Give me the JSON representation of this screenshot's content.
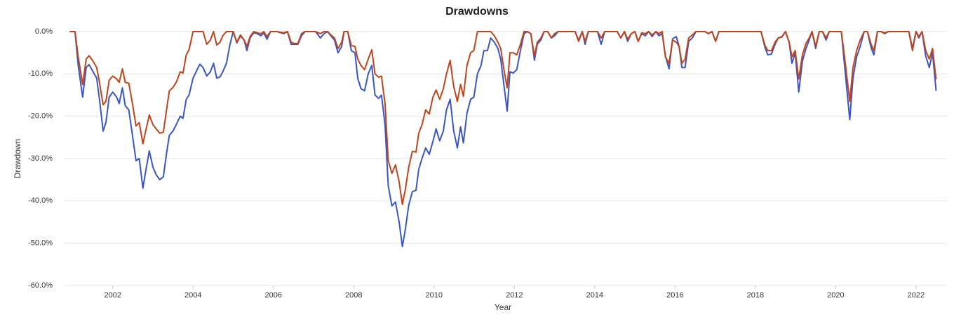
{
  "chart_data": {
    "type": "line",
    "title": "Drawdowns",
    "xlabel": "Year",
    "ylabel": "Drawdown",
    "x": [
      2000.93,
      2001.06,
      2001.14,
      2001.25,
      2001.34,
      2001.41,
      2001.51,
      2001.6,
      2001.67,
      2001.76,
      2001.83,
      2001.91,
      2002.0,
      2002.1,
      2002.16,
      2002.24,
      2002.31,
      2002.4,
      2002.49,
      2002.58,
      2002.66,
      2002.75,
      2002.82,
      2002.91,
      2003.0,
      2003.08,
      2003.17,
      2003.26,
      2003.34,
      2003.41,
      2003.5,
      2003.59,
      2003.68,
      2003.75,
      2003.83,
      2003.9,
      2004.0,
      2004.1,
      2004.17,
      2004.25,
      2004.34,
      2004.43,
      2004.51,
      2004.59,
      2004.67,
      2004.74,
      2004.83,
      2004.92,
      2005.0,
      2005.09,
      2005.18,
      2005.27,
      2005.34,
      2005.42,
      2005.51,
      2005.6,
      2005.69,
      2005.76,
      2005.84,
      2005.93,
      2006.09,
      2006.26,
      2006.35,
      2006.44,
      2006.52,
      2006.61,
      2006.7,
      2006.79,
      2007.05,
      2007.17,
      2007.26,
      2007.35,
      2007.43,
      2007.52,
      2007.61,
      2007.7,
      2007.76,
      2007.85,
      2007.94,
      2008.03,
      2008.1,
      2008.18,
      2008.27,
      2008.36,
      2008.45,
      2008.53,
      2008.62,
      2008.69,
      2008.78,
      2008.86,
      2008.95,
      2009.04,
      2009.13,
      2009.21,
      2009.28,
      2009.37,
      2009.46,
      2009.55,
      2009.62,
      2009.7,
      2009.79,
      2009.88,
      2009.97,
      2010.05,
      2010.14,
      2010.23,
      2010.31,
      2010.4,
      2010.49,
      2010.58,
      2010.66,
      2010.73,
      2010.82,
      2010.91,
      2010.99,
      2011.08,
      2011.17,
      2011.24,
      2011.33,
      2011.41,
      2011.5,
      2011.59,
      2011.66,
      2011.73,
      2011.82,
      2011.89,
      2011.97,
      2012.06,
      2012.15,
      2012.24,
      2012.32,
      2012.41,
      2012.5,
      2012.57,
      2012.66,
      2012.74,
      2012.83,
      2012.92,
      2013.0,
      2013.09,
      2013.51,
      2013.6,
      2013.69,
      2013.76,
      2013.84,
      2014.07,
      2014.16,
      2014.25,
      2014.56,
      2014.65,
      2014.74,
      2014.82,
      2014.91,
      2015.0,
      2015.08,
      2015.17,
      2015.26,
      2015.34,
      2015.43,
      2015.52,
      2015.6,
      2015.68,
      2015.76,
      2015.85,
      2015.94,
      2016.03,
      2016.1,
      2016.17,
      2016.25,
      2016.34,
      2016.43,
      2016.52,
      2016.74,
      2016.83,
      2016.92,
      2017.01,
      2017.09,
      2018.14,
      2018.24,
      2018.31,
      2018.4,
      2018.49,
      2018.57,
      2018.66,
      2018.75,
      2018.84,
      2018.91,
      2018.99,
      2019.08,
      2019.17,
      2019.26,
      2019.34,
      2019.41,
      2019.5,
      2019.59,
      2019.67,
      2019.76,
      2019.84,
      2020.14,
      2020.22,
      2020.35,
      2020.43,
      2020.52,
      2020.61,
      2020.71,
      2020.79,
      2020.88,
      2020.95,
      2021.04,
      2021.13,
      2021.22,
      2021.31,
      2021.82,
      2021.91,
      2022.0,
      2022.07,
      2022.15,
      2022.24,
      2022.33,
      2022.41,
      2022.5
    ],
    "series": [
      {
        "color": "#3a56c5",
        "values": [
          0,
          0,
          -8,
          -15.5,
          -8.5,
          -7.8,
          -9.5,
          -11,
          -16,
          -23.5,
          -21.5,
          -15.5,
          -14.3,
          -15.5,
          -17,
          -13.3,
          -17.5,
          -18.5,
          -24.5,
          -30.5,
          -30,
          -37,
          -33,
          -28.2,
          -32,
          -33.8,
          -35,
          -34.3,
          -28.8,
          -24.5,
          -23.5,
          -21.8,
          -20,
          -20.5,
          -16,
          -15,
          -11,
          -9,
          -7.7,
          -8.5,
          -10.5,
          -9.5,
          -7.5,
          -11,
          -10.7,
          -9.5,
          -7.5,
          -3,
          0,
          -2.7,
          -1,
          -2,
          -4.5,
          -1.5,
          -0.3,
          -0.5,
          -1,
          -0.3,
          -1.8,
          0,
          0,
          -0.5,
          0,
          -3,
          -3,
          -3,
          -1,
          0,
          0,
          -1.5,
          -0.5,
          0,
          -1,
          -2,
          -5,
          -3.5,
          0,
          0,
          -4.5,
          -5,
          -11,
          -13.5,
          -14,
          -10,
          -8,
          -15,
          -15.8,
          -15,
          -22,
          -36.5,
          -41.2,
          -40.3,
          -45,
          -50.8,
          -47,
          -41,
          -37.8,
          -37.5,
          -32.5,
          -30,
          -27.5,
          -29,
          -26,
          -23,
          -25.8,
          -23.5,
          -18.5,
          -16,
          -23.5,
          -27.5,
          -22.5,
          -26.3,
          -19.3,
          -16,
          -15.5,
          -10,
          -8,
          -4.5,
          -4.5,
          -1.5,
          -2.5,
          -4,
          -6.5,
          -12,
          -18.8,
          -9.5,
          -9.8,
          -9,
          -4.5,
          -0.5,
          0,
          -0.5,
          -6.8,
          -3,
          -2,
          0,
          0,
          -1.5,
          -1,
          0,
          0,
          -2,
          0,
          -3,
          0,
          0,
          -3,
          0,
          0,
          -1.5,
          0,
          -2.3,
          -0.5,
          0,
          -2.3,
          -0.5,
          -1,
          0,
          -1.2,
          0,
          -1,
          -0.5,
          -5.8,
          -8.8,
          -1.7,
          -1.2,
          -3.5,
          -8.5,
          -8.5,
          -2.3,
          -1.5,
          0,
          0,
          -0.5,
          0,
          -2.3,
          0,
          0,
          -3.8,
          -5.5,
          -5.3,
          -3,
          -1.5,
          -1.3,
          0,
          -2.5,
          -7.5,
          -5,
          -14.3,
          -7,
          -4,
          -2,
          0,
          -4,
          0,
          0,
          -2,
          0,
          0,
          -8,
          -20.8,
          -11,
          -6,
          -3.5,
          0,
          0,
          -3.8,
          -5.5,
          0,
          0,
          -0.5,
          0,
          0,
          -4,
          0,
          -1.5,
          0,
          -5.8,
          -8.5,
          -5,
          -14
        ]
      },
      {
        "color": "#c0441a",
        "values": [
          0,
          0,
          -6,
          -12.5,
          -6.5,
          -5.7,
          -7,
          -8.5,
          -12,
          -17.3,
          -16.5,
          -11.5,
          -10.5,
          -11.2,
          -12,
          -8.8,
          -12,
          -12.2,
          -17,
          -22.3,
          -21.5,
          -26.5,
          -23.5,
          -19.7,
          -22,
          -23,
          -24,
          -23.8,
          -18.5,
          -14,
          -13.2,
          -11.8,
          -9.5,
          -9.8,
          -5.5,
          -4.3,
          0,
          0,
          0,
          0,
          -3,
          -2,
          0,
          -3.2,
          -2.5,
          -1,
          0,
          0,
          0,
          -2.5,
          -0.8,
          -2,
          -3.5,
          -1.2,
          0,
          -0.3,
          -0.5,
          0,
          -1.2,
          0,
          0,
          -0.3,
          0,
          -2.5,
          -2.8,
          -2.8,
          -0.5,
          0,
          0,
          -0.5,
          0,
          0,
          -0.8,
          -1.5,
          -4,
          -2.5,
          0,
          0,
          -3.3,
          -3.5,
          -6.5,
          -8,
          -9,
          -6.5,
          -4.3,
          -10,
          -10.8,
          -10.5,
          -17,
          -30.5,
          -33.5,
          -31.5,
          -35.5,
          -40.8,
          -37.5,
          -32,
          -28.3,
          -28.5,
          -24,
          -22,
          -18.5,
          -19.5,
          -15.5,
          -13.8,
          -16,
          -13.5,
          -10,
          -6.8,
          -13,
          -16.5,
          -12.5,
          -15.3,
          -8,
          -5,
          -4.5,
          0,
          0,
          0,
          0,
          0,
          -1,
          -2.5,
          -4,
          -8.5,
          -13.3,
          -5,
          -5,
          -5.5,
          -3,
          0,
          0,
          -0.5,
          -5.8,
          -2.5,
          -1.5,
          0,
          0,
          -1.5,
          -0.5,
          0,
          0,
          -2.3,
          0,
          -2.3,
          0,
          0,
          -1.5,
          0,
          0,
          -1.5,
          0,
          -1.8,
          -0.5,
          0,
          -2.3,
          -0.3,
          -0.5,
          0,
          -0.8,
          0,
          -0.5,
          0,
          -6,
          -7.5,
          -2,
          -2.5,
          -3.5,
          -7.5,
          -6.5,
          -1.5,
          -0.8,
          0,
          0,
          -0.5,
          0,
          -2.3,
          0,
          0,
          -3.3,
          -4.5,
          -4.5,
          -2.5,
          -1.5,
          -1.2,
          0,
          -2.5,
          -6,
          -4.5,
          -11.2,
          -5.5,
          -2.8,
          -1.5,
          0,
          -3.5,
          0,
          0,
          -1.5,
          0,
          0,
          -6,
          -16.5,
          -8.5,
          -4.5,
          -2,
          0,
          0,
          -3,
          -4.5,
          0,
          0,
          -0.3,
          0,
          0,
          -4.5,
          0,
          -1.2,
          0,
          -4.5,
          -6.5,
          -4,
          -11.3
        ]
      }
    ],
    "xlim": [
      2000.8,
      2022.77
    ],
    "xticks": [
      2002,
      2004,
      2006,
      2008,
      2010,
      2012,
      2014,
      2016,
      2018,
      2020,
      2022
    ],
    "ylim": [
      -60,
      0
    ],
    "yticks": [
      {
        "value": 0,
        "label": "0.0%"
      },
      {
        "value": -10,
        "label": "-10.0%"
      },
      {
        "value": -20,
        "label": "-20.0%"
      },
      {
        "value": -30,
        "label": "-30.0%"
      },
      {
        "value": -40,
        "label": "-40.0%"
      },
      {
        "value": -50,
        "label": "-50.0%"
      },
      {
        "value": -60,
        "label": "-60.0%"
      }
    ],
    "grid": true
  }
}
